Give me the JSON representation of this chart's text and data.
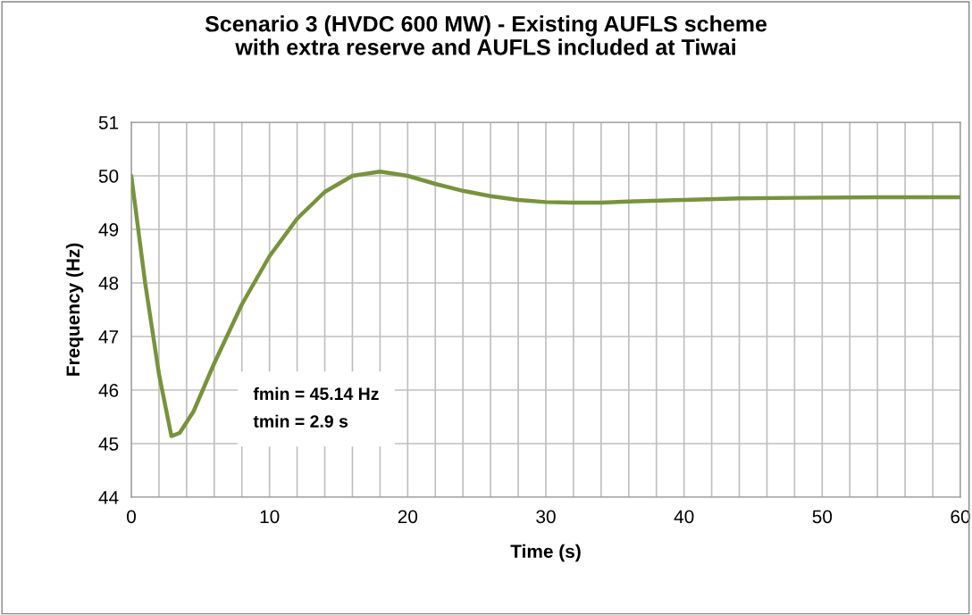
{
  "chart_data": {
    "type": "line",
    "title": "Scenario 3 (HVDC 600 MW) - Existing AUFLS scheme\nwith extra reserve and AUFLS included at Tiwai",
    "xlabel": "Time (s)",
    "ylabel": "Frequency (Hz)",
    "x": [
      0,
      1,
      2,
      2.9,
      3.5,
      4.5,
      6,
      8,
      10,
      12,
      14,
      16,
      18,
      20,
      22,
      24,
      26,
      28,
      30,
      32,
      34,
      36,
      40,
      44,
      48,
      54,
      60
    ],
    "series": [
      {
        "color": "#77933c",
        "values": [
          50,
          48,
          46.3,
          45.14,
          45.2,
          45.6,
          46.5,
          47.6,
          48.5,
          49.2,
          49.7,
          50.0,
          50.08,
          50.0,
          49.85,
          49.72,
          49.62,
          49.55,
          49.51,
          49.5,
          49.5,
          49.52,
          49.55,
          49.58,
          49.59,
          49.6,
          49.6
        ]
      }
    ],
    "xlim": [
      0,
      60
    ],
    "ylim": [
      44,
      51
    ],
    "xticks": [
      0,
      {
        "value": 2,
        "label": null
      },
      {
        "value": 4,
        "label": null
      },
      {
        "value": 6,
        "label": null
      },
      {
        "value": 8,
        "label": null
      },
      10,
      {
        "value": 12,
        "label": null
      },
      {
        "value": 14,
        "label": null
      },
      {
        "value": 16,
        "label": null
      },
      {
        "value": 18,
        "label": null
      },
      20,
      {
        "value": 22,
        "label": null
      },
      {
        "value": 24,
        "label": null
      },
      {
        "value": 26,
        "label": null
      },
      {
        "value": 28,
        "label": null
      },
      30,
      {
        "value": 32,
        "label": null
      },
      {
        "value": 34,
        "label": null
      },
      {
        "value": 36,
        "label": null
      },
      {
        "value": 38,
        "label": null
      },
      40,
      {
        "value": 42,
        "label": null
      },
      {
        "value": 44,
        "label": null
      },
      {
        "value": 46,
        "label": null
      },
      {
        "value": 48,
        "label": null
      },
      50,
      {
        "value": 52,
        "label": null
      },
      {
        "value": 54,
        "label": null
      },
      {
        "value": 56,
        "label": null
      },
      {
        "value": 58,
        "label": null
      },
      60
    ],
    "yticks": [
      44,
      45,
      46,
      47,
      48,
      49,
      50,
      51
    ],
    "grid": true,
    "marker": "none",
    "line_style": "solid",
    "annotations": [
      "fmin = 45.14 Hz\ntmin = 2.9 s"
    ]
  }
}
